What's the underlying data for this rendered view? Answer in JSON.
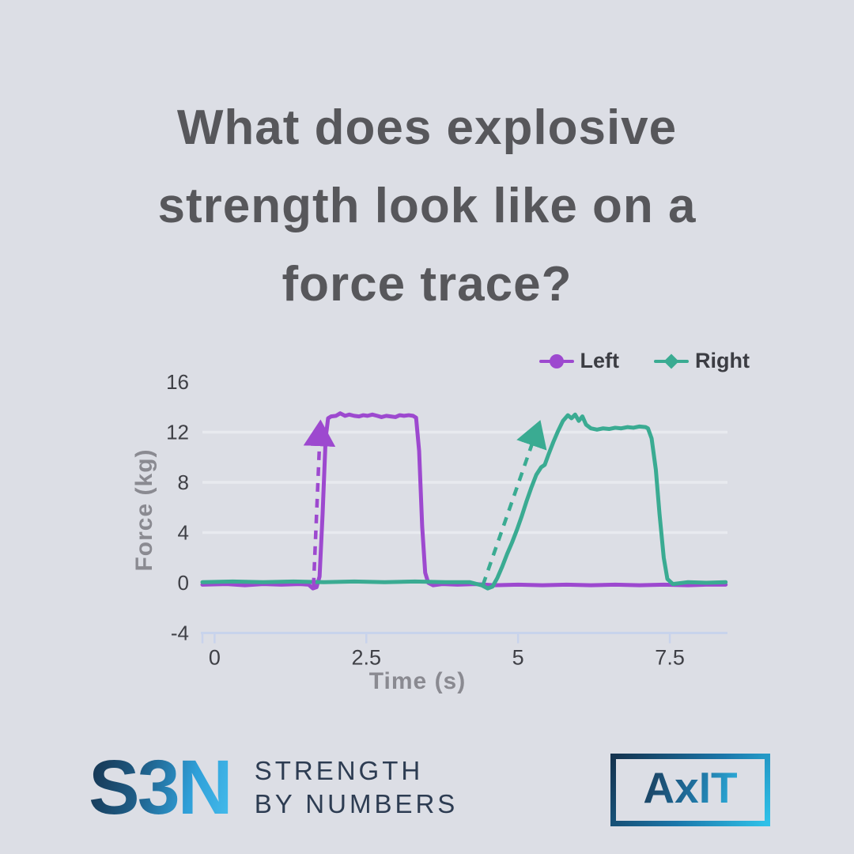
{
  "title": {
    "lines": [
      "What does explosive",
      "strength look like on a",
      "force trace?"
    ]
  },
  "colors": {
    "background": "#dcdee5",
    "title_text": "#57575b",
    "left_trace": "#9d49cf",
    "right_trace": "#3aab92",
    "gridline": "#e8eaef",
    "axis_line": "#c8d3ec",
    "tick_text": "#3f4046",
    "axis_title_text": "#8a8a91",
    "legend_text": "#3c3d43",
    "logo_navy": "#2d3c52",
    "logo_blue": "#2f9fd8"
  },
  "chart_data": {
    "type": "line",
    "title": "",
    "xlabel": "Time (s)",
    "ylabel": "Force (kg)",
    "xlim": [
      -0.2,
      8.45
    ],
    "ylim": [
      -4,
      16
    ],
    "grid": "horizontal-only",
    "gridlines_y": [
      4,
      8,
      12
    ],
    "x_ticks": [
      {
        "value": 0,
        "label": "0"
      },
      {
        "value": 2.5,
        "label": "2.5"
      },
      {
        "value": 5,
        "label": "5"
      },
      {
        "value": 7.5,
        "label": "7.5"
      }
    ],
    "y_ticks": [
      {
        "value": 16,
        "label": "16"
      },
      {
        "value": 12,
        "label": "12"
      },
      {
        "value": 8,
        "label": "8"
      },
      {
        "value": 4,
        "label": "4"
      },
      {
        "value": 0,
        "label": "0"
      },
      {
        "value": -4,
        "label": "-4"
      }
    ],
    "legend_position": "top-right",
    "legend": [
      {
        "name": "Left",
        "color": "#9d49cf",
        "marker": "circle"
      },
      {
        "name": "Right",
        "color": "#3aab92",
        "marker": "diamond"
      }
    ],
    "series": [
      {
        "name": "Left",
        "color": "#9d49cf",
        "points": [
          [
            -0.2,
            -0.15
          ],
          [
            0.2,
            -0.1
          ],
          [
            0.5,
            -0.2
          ],
          [
            0.8,
            -0.1
          ],
          [
            1.1,
            -0.15
          ],
          [
            1.4,
            -0.1
          ],
          [
            1.55,
            -0.15
          ],
          [
            1.62,
            -0.45
          ],
          [
            1.68,
            -0.35
          ],
          [
            1.73,
            0.5
          ],
          [
            1.78,
            5.5
          ],
          [
            1.83,
            11.5
          ],
          [
            1.87,
            13.1
          ],
          [
            1.92,
            13.25
          ],
          [
            2.0,
            13.3
          ],
          [
            2.07,
            13.5
          ],
          [
            2.15,
            13.3
          ],
          [
            2.22,
            13.4
          ],
          [
            2.3,
            13.3
          ],
          [
            2.38,
            13.25
          ],
          [
            2.45,
            13.35
          ],
          [
            2.52,
            13.3
          ],
          [
            2.6,
            13.4
          ],
          [
            2.68,
            13.3
          ],
          [
            2.75,
            13.2
          ],
          [
            2.83,
            13.3
          ],
          [
            2.9,
            13.25
          ],
          [
            2.98,
            13.2
          ],
          [
            3.05,
            13.35
          ],
          [
            3.12,
            13.3
          ],
          [
            3.2,
            13.35
          ],
          [
            3.27,
            13.3
          ],
          [
            3.32,
            13.15
          ],
          [
            3.37,
            10.5
          ],
          [
            3.42,
            4.5
          ],
          [
            3.47,
            0.8
          ],
          [
            3.52,
            0
          ],
          [
            3.6,
            -0.2
          ],
          [
            3.75,
            -0.1
          ],
          [
            4.0,
            -0.15
          ],
          [
            4.3,
            -0.1
          ],
          [
            4.6,
            -0.2
          ],
          [
            5.0,
            -0.15
          ],
          [
            5.4,
            -0.2
          ],
          [
            5.8,
            -0.15
          ],
          [
            6.2,
            -0.2
          ],
          [
            6.6,
            -0.15
          ],
          [
            7.0,
            -0.2
          ],
          [
            7.4,
            -0.15
          ],
          [
            7.8,
            -0.2
          ],
          [
            8.1,
            -0.15
          ],
          [
            8.42,
            -0.15
          ]
        ]
      },
      {
        "name": "Right",
        "color": "#3aab92",
        "points": [
          [
            -0.2,
            0.05
          ],
          [
            0.3,
            0.1
          ],
          [
            0.8,
            0.05
          ],
          [
            1.3,
            0.1
          ],
          [
            1.8,
            0.05
          ],
          [
            2.3,
            0.1
          ],
          [
            2.8,
            0.05
          ],
          [
            3.3,
            0.1
          ],
          [
            3.8,
            0.05
          ],
          [
            4.2,
            0.05
          ],
          [
            4.4,
            -0.2
          ],
          [
            4.5,
            -0.45
          ],
          [
            4.58,
            -0.3
          ],
          [
            4.66,
            0.4
          ],
          [
            4.74,
            1.3
          ],
          [
            4.82,
            2.3
          ],
          [
            4.9,
            3.2
          ],
          [
            4.98,
            4.2
          ],
          [
            5.06,
            5.3
          ],
          [
            5.14,
            6.5
          ],
          [
            5.22,
            7.6
          ],
          [
            5.3,
            8.6
          ],
          [
            5.38,
            9.2
          ],
          [
            5.44,
            9.4
          ],
          [
            5.5,
            10.2
          ],
          [
            5.58,
            11.2
          ],
          [
            5.66,
            12.1
          ],
          [
            5.74,
            12.9
          ],
          [
            5.82,
            13.35
          ],
          [
            5.88,
            13.1
          ],
          [
            5.94,
            13.4
          ],
          [
            6.0,
            12.9
          ],
          [
            6.06,
            13.25
          ],
          [
            6.12,
            12.6
          ],
          [
            6.2,
            12.3
          ],
          [
            6.3,
            12.2
          ],
          [
            6.4,
            12.3
          ],
          [
            6.5,
            12.25
          ],
          [
            6.6,
            12.35
          ],
          [
            6.7,
            12.3
          ],
          [
            6.8,
            12.4
          ],
          [
            6.9,
            12.35
          ],
          [
            7.0,
            12.45
          ],
          [
            7.1,
            12.4
          ],
          [
            7.14,
            12.3
          ],
          [
            7.2,
            11.5
          ],
          [
            7.27,
            9.0
          ],
          [
            7.33,
            5.5
          ],
          [
            7.4,
            2.0
          ],
          [
            7.46,
            0.3
          ],
          [
            7.55,
            -0.1
          ],
          [
            7.8,
            0.05
          ],
          [
            8.1,
            0
          ],
          [
            8.42,
            0.05
          ]
        ]
      }
    ],
    "annotations": [
      {
        "id": "rfd-arrow-left",
        "type": "arrow",
        "style": "dashed",
        "color": "#9d49cf",
        "from": [
          1.63,
          -0.3
        ],
        "to": [
          1.74,
          12.3
        ]
      },
      {
        "id": "rfd-arrow-right",
        "type": "arrow",
        "style": "dashed",
        "color": "#3aab92",
        "from": [
          4.42,
          -0.2
        ],
        "to": [
          5.32,
          12.3
        ]
      }
    ]
  },
  "footer": {
    "sbn": {
      "mark": "S3N",
      "line1": "STRENGTH",
      "line2": "BY NUMBERS"
    },
    "axit": {
      "label": "AxIT"
    }
  }
}
